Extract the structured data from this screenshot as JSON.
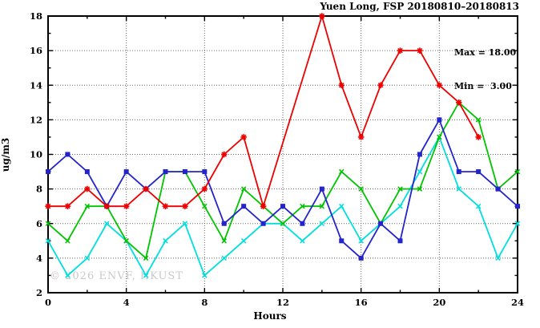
{
  "title": "Yuen Long, FSP 20180810–20180813",
  "legend": {
    "max_label": "Max = 18.00",
    "min_label": "Min =  3.00"
  },
  "watermark": "© 2026 ENVF, HKUST",
  "axes": {
    "xlabel": "Hours",
    "ylabel": "ug/m3",
    "x_ticks": [
      0,
      4,
      8,
      12,
      16,
      20,
      24
    ],
    "y_ticks": [
      2,
      4,
      6,
      8,
      10,
      12,
      14,
      16,
      18
    ],
    "xlim": [
      0,
      24
    ],
    "ylim": [
      2,
      18
    ]
  },
  "colors": {
    "grid": "#666666",
    "axis": "#000000",
    "background": "#ffffff",
    "text": "#000000",
    "watermark": "#c9c9c9"
  },
  "chart_data": {
    "type": "line",
    "title": "Yuen Long, FSP 20180810–20180813",
    "xlabel": "Hours",
    "ylabel": "ug/m3",
    "xlim": [
      0,
      24
    ],
    "ylim": [
      2,
      18
    ],
    "grid": true,
    "annotations": {
      "max": 18.0,
      "min": 3.0
    },
    "x": [
      0,
      1,
      2,
      3,
      4,
      5,
      6,
      7,
      8,
      9,
      10,
      11,
      12,
      13,
      14,
      15,
      16,
      17,
      18,
      19,
      20,
      21,
      22,
      23,
      24
    ],
    "series": [
      {
        "name": "series-cyan",
        "color": "#00dede",
        "marker": "x",
        "values": [
          5,
          3,
          4,
          6,
          5,
          3,
          5,
          6,
          3,
          4,
          5,
          6,
          6,
          5,
          6,
          7,
          5,
          6,
          7,
          9,
          11,
          8,
          7,
          4,
          6
        ]
      },
      {
        "name": "series-green",
        "color": "#00c400",
        "marker": "x",
        "values": [
          6,
          5,
          7,
          7,
          5,
          4,
          9,
          9,
          7,
          5,
          8,
          7,
          6,
          7,
          7,
          9,
          8,
          6,
          8,
          8,
          11,
          13,
          12,
          8,
          9
        ]
      },
      {
        "name": "series-blue",
        "color": "#2424cc",
        "marker": "square",
        "values": [
          9,
          10,
          9,
          7,
          9,
          8,
          9,
          9,
          9,
          6,
          7,
          6,
          7,
          6,
          8,
          5,
          4,
          6,
          5,
          10,
          12,
          9,
          9,
          8,
          7
        ]
      },
      {
        "name": "series-red",
        "color": "#ee0000",
        "marker": "asterisk",
        "values": [
          7,
          7,
          8,
          7,
          7,
          8,
          7,
          7,
          8,
          10,
          11,
          7,
          null,
          null,
          18,
          14,
          11,
          14,
          16,
          16,
          14,
          13,
          11,
          null,
          null
        ]
      }
    ]
  }
}
